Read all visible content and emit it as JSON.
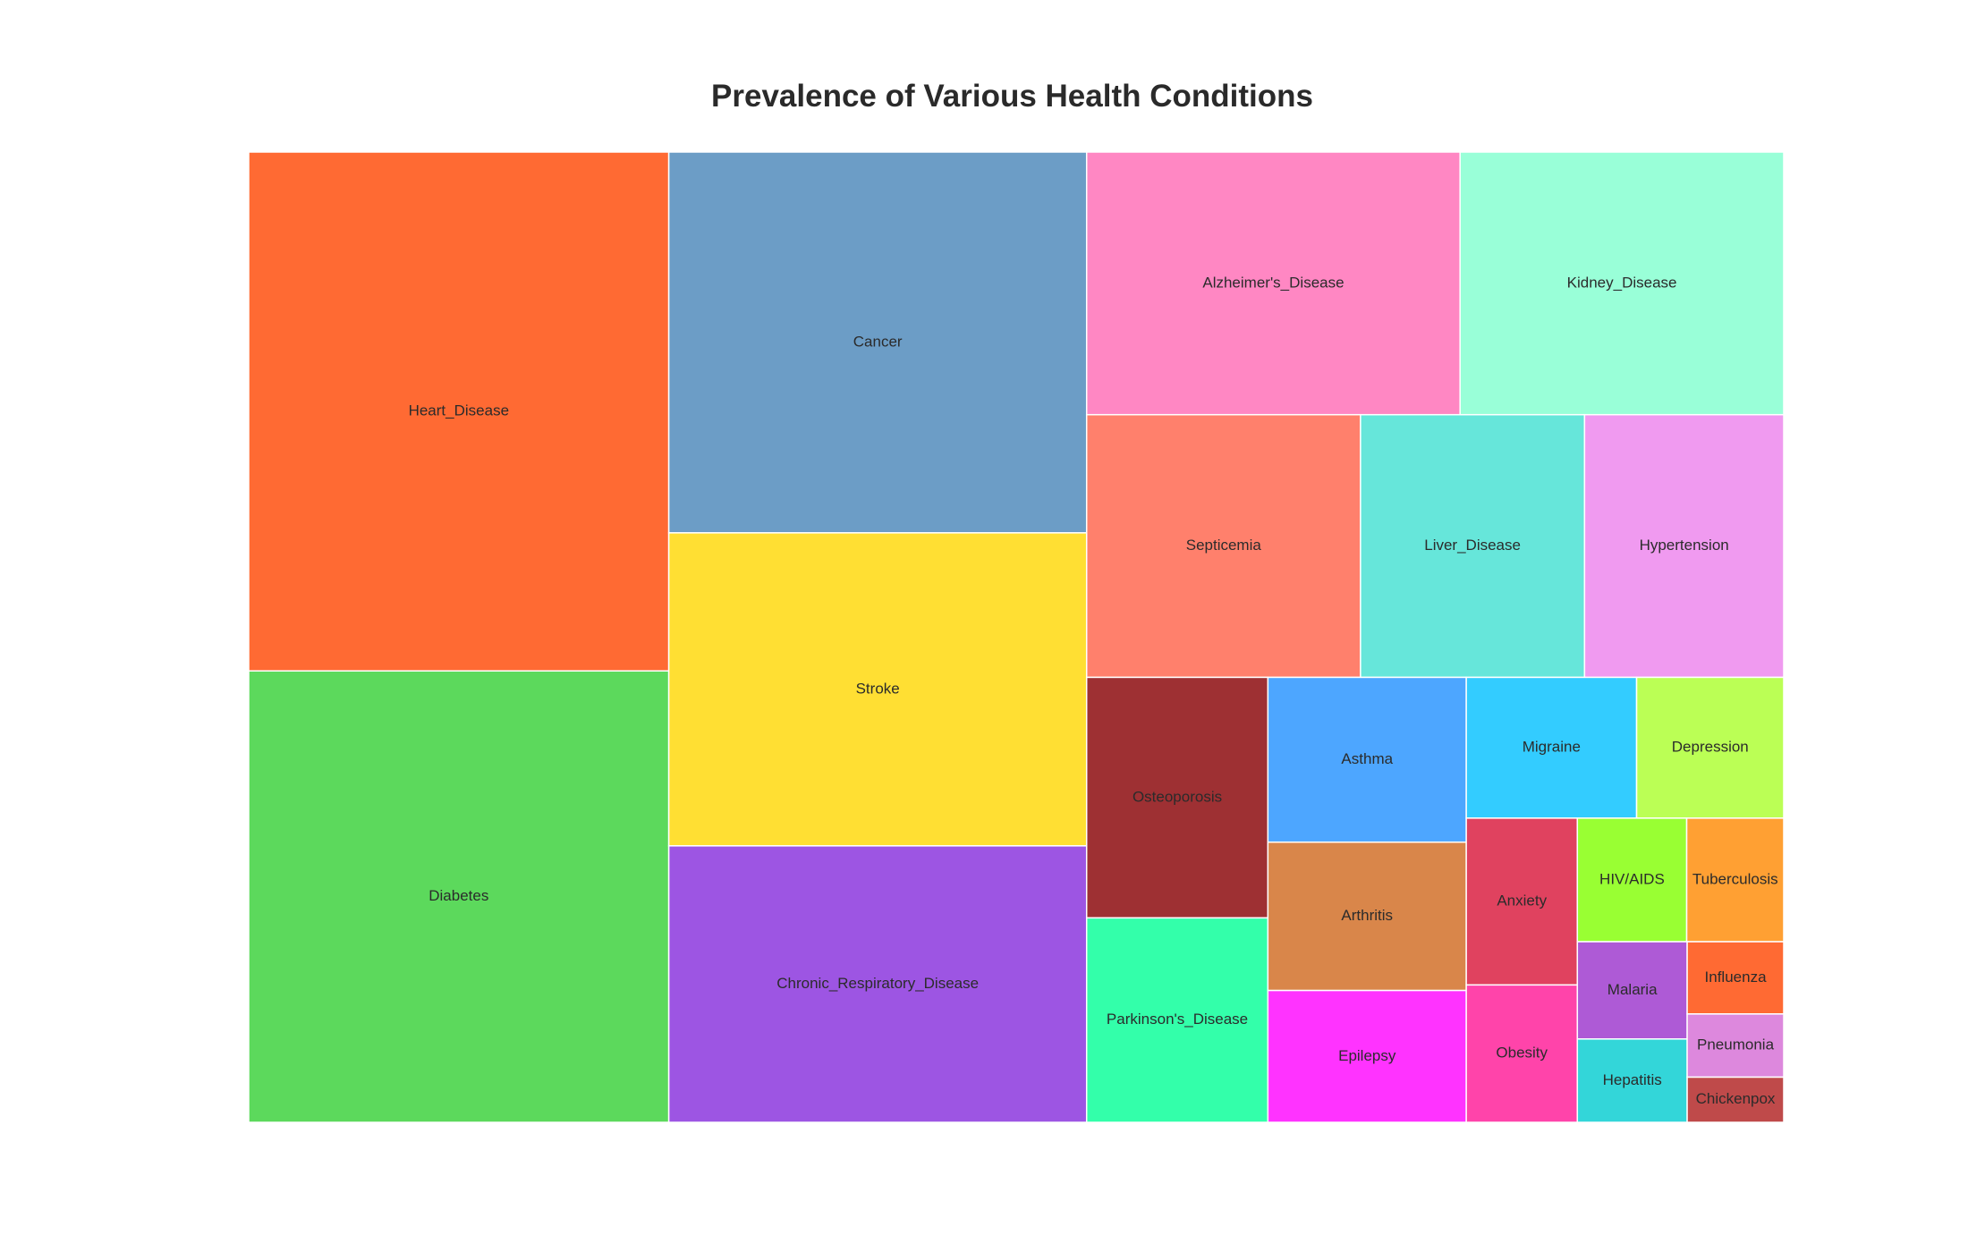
{
  "chart_data": {
    "type": "treemap",
    "title": "Prevalence of Various Health Conditions",
    "items": [
      {
        "label": "Heart_Disease",
        "value": 100,
        "color": "#FF6A33"
      },
      {
        "label": "Diabetes",
        "value": 87,
        "color": "#5CD95C"
      },
      {
        "label": "Cancer",
        "value": 73,
        "color": "#6C9DC6"
      },
      {
        "label": "Stroke",
        "value": 60,
        "color": "#FFDF33"
      },
      {
        "label": "Chronic_Respiratory_Disease",
        "value": 53,
        "color": "#9D55E3"
      },
      {
        "label": "Alzheimer's_Disease",
        "value": 45,
        "color": "#FF87C3"
      },
      {
        "label": "Kidney_Disease",
        "value": 39,
        "color": "#99FFD8"
      },
      {
        "label": "Septicemia",
        "value": 33,
        "color": "#FF806C"
      },
      {
        "label": "Liver_Disease",
        "value": 27,
        "color": "#66E6DA"
      },
      {
        "label": "Hypertension",
        "value": 24,
        "color": "#F09AF0"
      },
      {
        "label": "Osteoporosis",
        "value": 20,
        "color": "#9E3033"
      },
      {
        "label": "Parkinson's_Disease",
        "value": 17,
        "color": "#33FFAA"
      },
      {
        "label": "Asthma",
        "value": 15,
        "color": "#4DA6FF"
      },
      {
        "label": "Arthritis",
        "value": 13.5,
        "color": "#D9864A"
      },
      {
        "label": "Epilepsy",
        "value": 12,
        "color": "#FF33FF"
      },
      {
        "label": "Migraine",
        "value": 11,
        "color": "#33CCFF"
      },
      {
        "label": "Depression",
        "value": 9.5,
        "color": "#BBFF55"
      },
      {
        "label": "Anxiety",
        "value": 8.5,
        "color": "#E0425F"
      },
      {
        "label": "Obesity",
        "value": 7,
        "color": "#FF44AA"
      },
      {
        "label": "HIV/AIDS",
        "value": 6.2,
        "color": "#99FF33"
      },
      {
        "label": "Tuberculosis",
        "value": 5.5,
        "color": "#FFA033"
      },
      {
        "label": "Malaria",
        "value": 4.9,
        "color": "#AE5AD6"
      },
      {
        "label": "Hepatitis",
        "value": 4.2,
        "color": "#33D6D9"
      },
      {
        "label": "Influenza",
        "value": 3.2,
        "color": "#FF6A33"
      },
      {
        "label": "Pneumonia",
        "value": 2.8,
        "color": "#DD88DD"
      },
      {
        "label": "Chickenpox",
        "value": 2,
        "color": "#BF4A4A"
      }
    ]
  }
}
